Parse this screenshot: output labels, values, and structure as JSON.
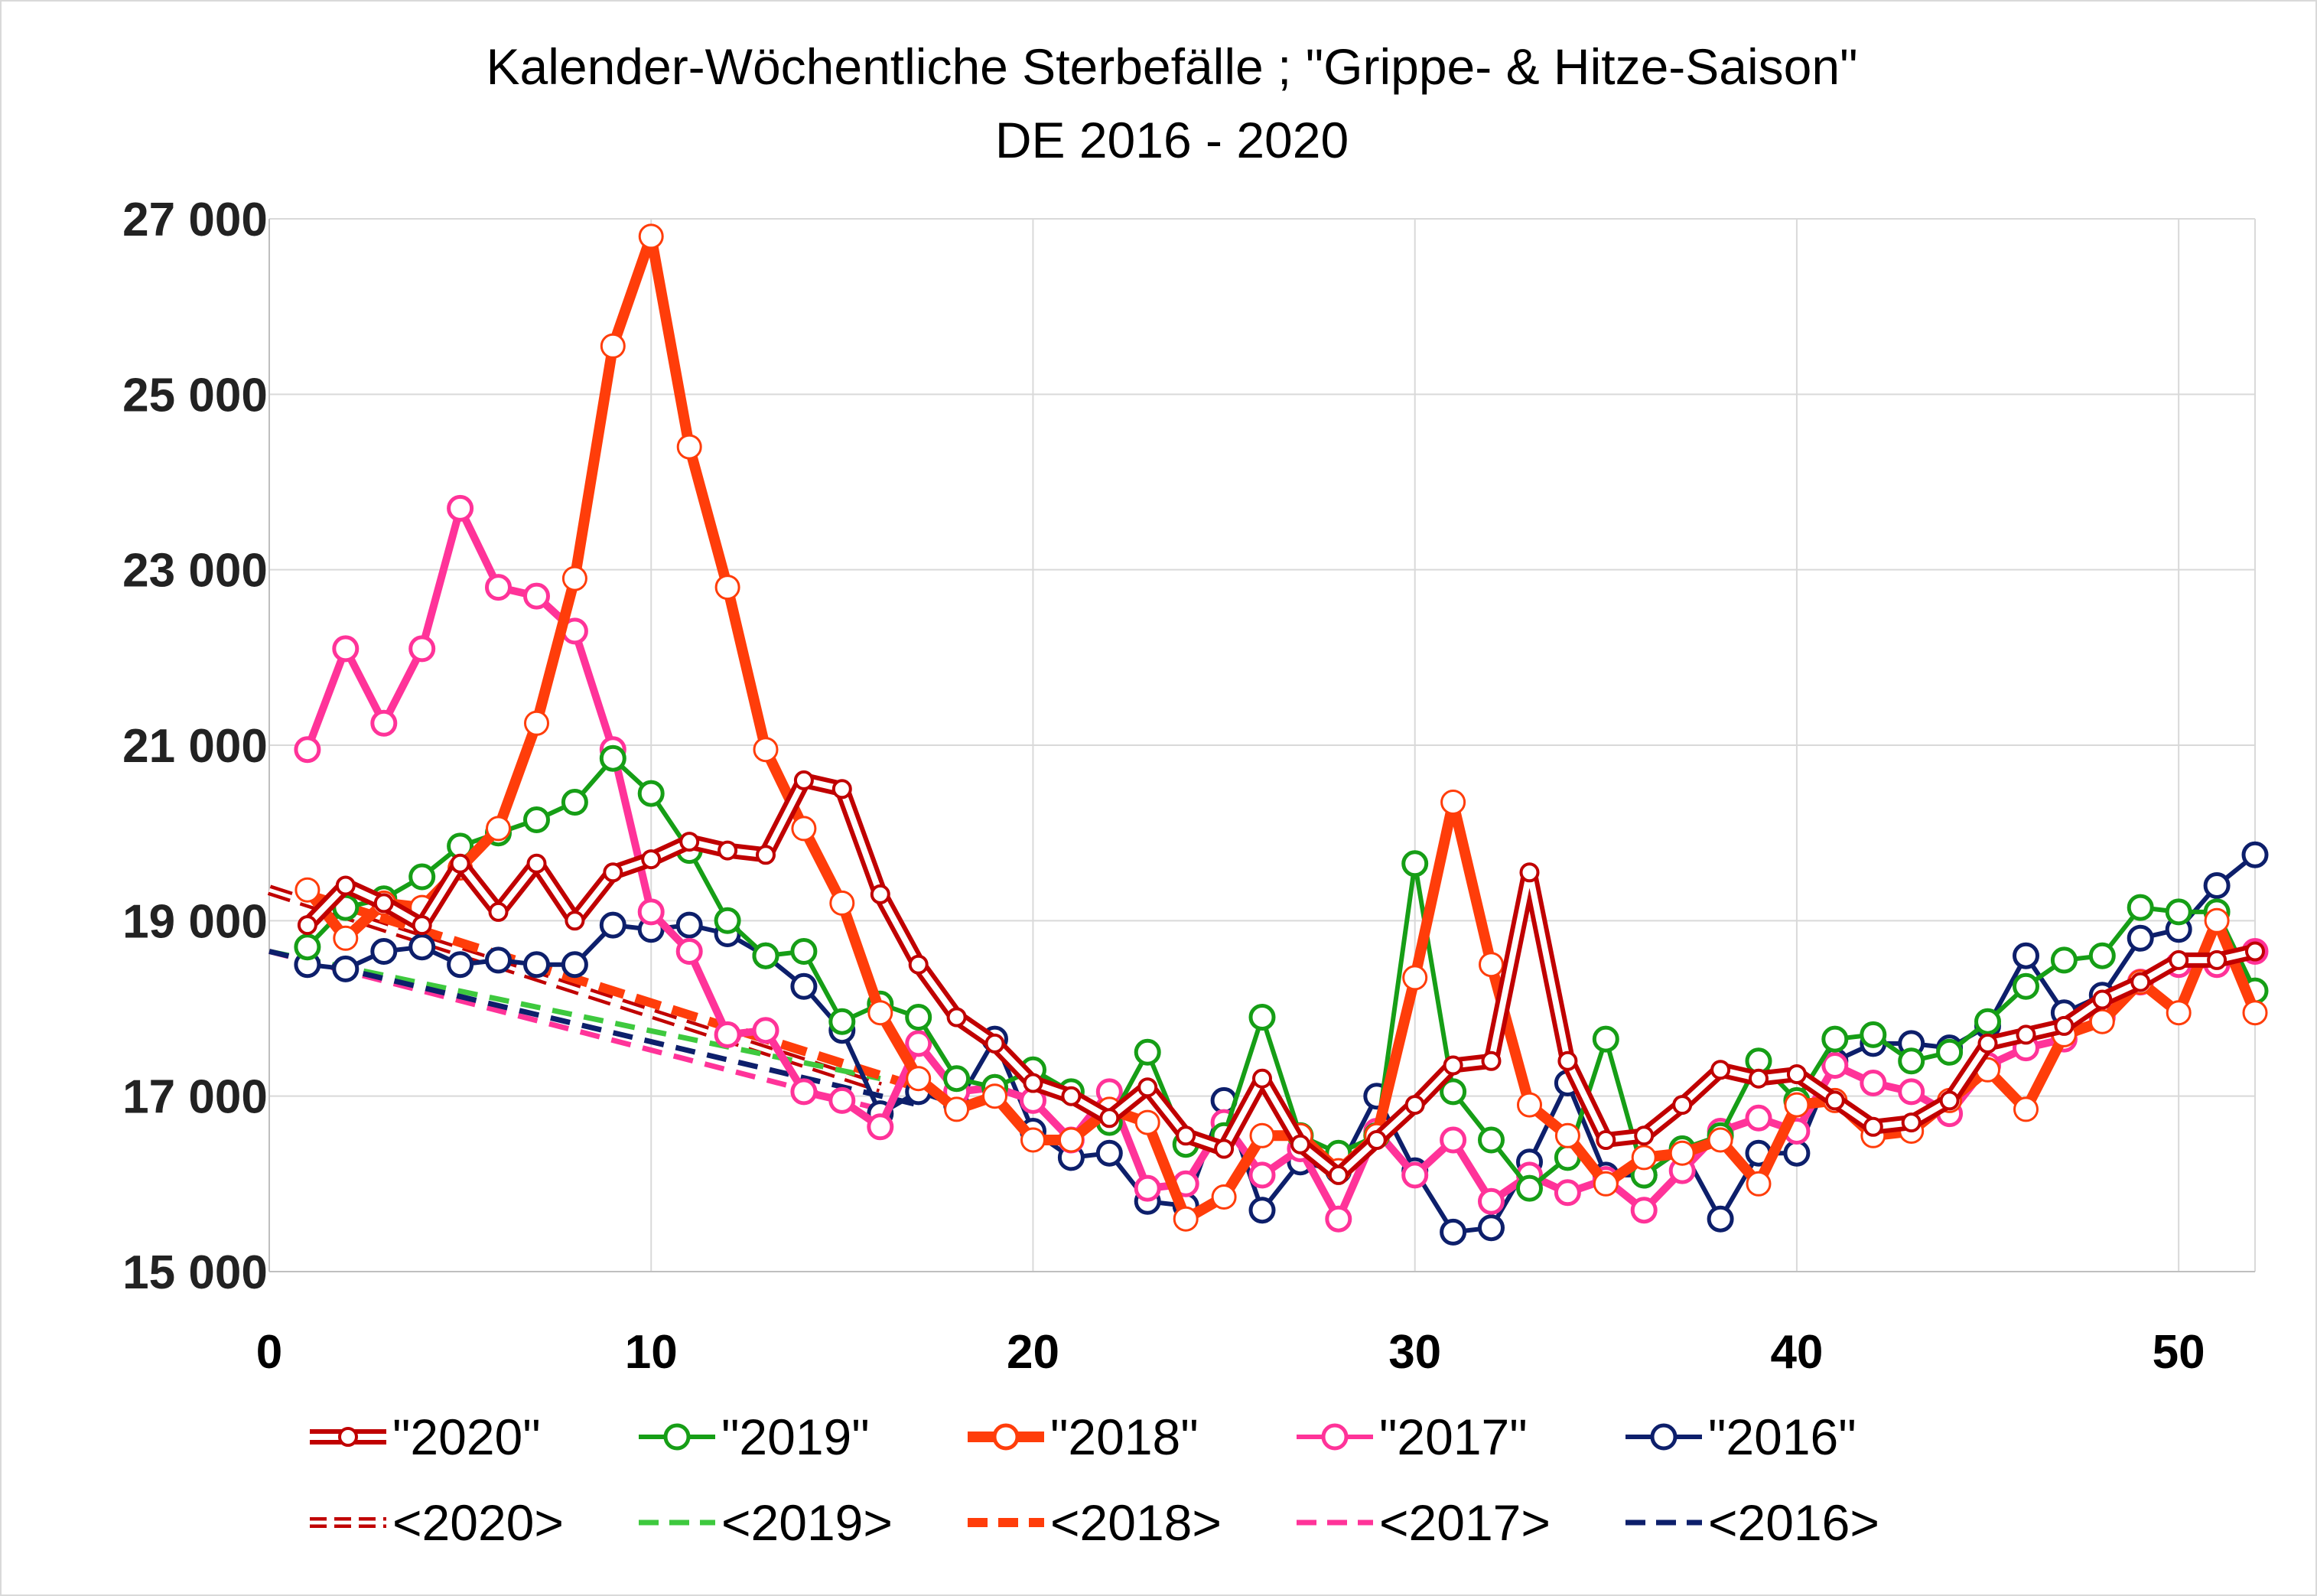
{
  "chart_data": {
    "type": "line",
    "title": "Kalender-Wöchentliche Sterbefälle ; \"Grippe- & Hitze-Saison\"",
    "subtitle": "DE 2016 - 2020",
    "xlim": [
      0,
      52
    ],
    "ylim": [
      15000,
      27000
    ],
    "xticks": [
      0,
      10,
      20,
      30,
      40,
      50
    ],
    "yticks": [
      15000,
      17000,
      19000,
      21000,
      23000,
      25000,
      27000
    ],
    "ytick_labels": [
      "15 000",
      "17 000",
      "19 000",
      "21 000",
      "23 000",
      "25 000",
      "27 000"
    ],
    "grid": true,
    "legend_position": "bottom",
    "series": [
      {
        "name": "\"2020\"",
        "kind": "weekly",
        "color": "#c00000",
        "style": "double",
        "x": [
          1,
          2,
          3,
          4,
          5,
          6,
          7,
          8,
          9,
          10,
          11,
          12,
          13,
          14,
          15,
          16,
          17,
          18,
          19,
          20,
          21,
          22,
          23,
          24,
          25,
          26,
          27,
          28,
          29,
          30,
          31,
          32,
          33,
          34,
          35,
          36,
          37,
          38,
          39,
          40,
          41,
          42,
          43,
          44,
          45,
          46,
          47,
          48,
          49,
          50,
          51,
          52
        ],
        "y": [
          18950,
          19400,
          19200,
          18950,
          19650,
          19100,
          19650,
          19000,
          19550,
          19700,
          19900,
          19800,
          19750,
          20600,
          20500,
          19300,
          18500,
          17900,
          17600,
          17150,
          17000,
          16750,
          17100,
          16550,
          16400,
          17200,
          16450,
          16100,
          16500,
          16900,
          17350,
          17400,
          19550,
          17400,
          16500,
          16550,
          16900,
          17300,
          17200,
          17250,
          16950,
          16650,
          16700,
          16950,
          17600,
          17700,
          17800,
          18100,
          18300,
          18550,
          18550,
          18650
        ]
      },
      {
        "name": "\"2019\"",
        "kind": "weekly",
        "color": "#169e16",
        "style": "solid",
        "x": [
          1,
          2,
          3,
          4,
          5,
          6,
          7,
          8,
          9,
          10,
          11,
          12,
          13,
          14,
          15,
          16,
          17,
          18,
          19,
          20,
          21,
          22,
          23,
          24,
          25,
          26,
          27,
          28,
          29,
          30,
          31,
          32,
          33,
          34,
          35,
          36,
          37,
          38,
          39,
          40,
          41,
          42,
          43,
          44,
          45,
          46,
          47,
          48,
          49,
          50,
          51,
          52
        ],
        "y": [
          18700,
          19150,
          19250,
          19500,
          19850,
          20000,
          20150,
          20350,
          20850,
          20450,
          19800,
          19000,
          18600,
          18650,
          17850,
          18050,
          17900,
          17200,
          17100,
          17300,
          17050,
          16700,
          17500,
          16450,
          16550,
          17900,
          16550,
          16350,
          16550,
          19650,
          17050,
          16500,
          15950,
          16300,
          17650,
          16100,
          16400,
          16550,
          17400,
          16950,
          17650,
          17700,
          17400,
          17500,
          17850,
          18250,
          18550,
          18600,
          19150,
          19100,
          19100,
          18200
        ]
      },
      {
        "name": "\"2018\"",
        "kind": "weekly",
        "color": "#ff3d0a",
        "style": "thick",
        "x": [
          1,
          2,
          3,
          4,
          5,
          6,
          7,
          8,
          9,
          10,
          11,
          12,
          13,
          14,
          15,
          16,
          17,
          18,
          19,
          20,
          21,
          22,
          23,
          24,
          25,
          26,
          27,
          28,
          29,
          30,
          31,
          32,
          33,
          34,
          35,
          36,
          37,
          38,
          39,
          40,
          41,
          42,
          43,
          44,
          45,
          46,
          47,
          48,
          49,
          50,
          51,
          52
        ],
        "y": [
          19350,
          18800,
          19200,
          19150,
          19600,
          20050,
          21250,
          22900,
          25550,
          26800,
          24400,
          22800,
          20950,
          20050,
          19200,
          17950,
          17200,
          16850,
          17000,
          16500,
          16500,
          16850,
          16700,
          15600,
          15850,
          16550,
          16550,
          16150,
          16550,
          18350,
          20350,
          18500,
          16900,
          16550,
          16000,
          16300,
          16350,
          16500,
          16000,
          16900,
          16950,
          16550,
          16600,
          16950,
          17300,
          16850,
          17700,
          17850,
          18300,
          17950,
          19000,
          17950
        ]
      },
      {
        "name": "\"2017\"",
        "kind": "weekly",
        "color": "#ff3399",
        "style": "solid",
        "x": [
          1,
          2,
          3,
          4,
          5,
          6,
          7,
          8,
          9,
          10,
          11,
          12,
          13,
          14,
          15,
          16,
          17,
          18,
          19,
          20,
          21,
          22,
          23,
          24,
          25,
          26,
          27,
          28,
          29,
          30,
          31,
          32,
          33,
          34,
          35,
          36,
          37,
          38,
          39,
          40,
          41,
          42,
          43,
          44,
          45,
          46,
          47,
          48,
          49,
          50,
          51,
          52
        ],
        "y": [
          20950,
          22100,
          21250,
          22100,
          23700,
          22800,
          22700,
          22300,
          20950,
          19100,
          18650,
          17700,
          17750,
          17050,
          16950,
          16650,
          17600,
          17050,
          17100,
          16950,
          16500,
          17050,
          15950,
          16000,
          16700,
          16100,
          16400,
          15600,
          16600,
          16100,
          16500,
          15800,
          16100,
          15900,
          16050,
          15700,
          16150,
          16600,
          16750,
          16600,
          17350,
          17150,
          17050,
          16800,
          17350,
          17550,
          17650,
          17900,
          18300,
          18500,
          18500,
          18650
        ]
      },
      {
        "name": "\"2016\"",
        "kind": "weekly",
        "color": "#0d1f6b",
        "style": "solid",
        "x": [
          1,
          2,
          3,
          4,
          5,
          6,
          7,
          8,
          9,
          10,
          11,
          12,
          13,
          14,
          15,
          16,
          17,
          18,
          19,
          20,
          21,
          22,
          23,
          24,
          25,
          26,
          27,
          28,
          29,
          30,
          31,
          32,
          33,
          34,
          35,
          36,
          37,
          38,
          39,
          40,
          41,
          42,
          43,
          44,
          45,
          46,
          47,
          48,
          49,
          50,
          51,
          52
        ],
        "y": [
          18500,
          18450,
          18650,
          18700,
          18500,
          18550,
          18500,
          18500,
          18950,
          18900,
          18950,
          18850,
          18600,
          18250,
          17750,
          16800,
          17050,
          16900,
          17650,
          16600,
          16300,
          16350,
          15800,
          15750,
          16950,
          15700,
          16250,
          16150,
          17000,
          16150,
          15450,
          15500,
          16250,
          17150,
          16100,
          16100,
          16400,
          15600,
          16350,
          16350,
          17400,
          17600,
          17600,
          17550,
          17800,
          18600,
          17950,
          18150,
          18800,
          18900,
          19400,
          19750
        ]
      },
      {
        "name": "<2020>",
        "kind": "trend",
        "color": "#c00000",
        "style": "double-dashed",
        "x": [
          0,
          16
        ],
        "y": [
          19350,
          17100
        ]
      },
      {
        "name": "<2019>",
        "kind": "trend",
        "color": "#3ec93e",
        "style": "dashed",
        "x": [
          0,
          16
        ],
        "y": [
          18650,
          17200
        ]
      },
      {
        "name": "<2018>",
        "kind": "trend",
        "color": "#ff3d0a",
        "style": "thick-dashed",
        "x": [
          1,
          17
        ],
        "y": [
          19300,
          17100
        ]
      },
      {
        "name": "<2017>",
        "kind": "trend",
        "color": "#ff3399",
        "style": "dashed",
        "x": [
          0,
          16
        ],
        "y": [
          18650,
          16850
        ]
      },
      {
        "name": "<2016>",
        "kind": "trend",
        "color": "#0d1f6b",
        "style": "dashed",
        "x": [
          0,
          17
        ],
        "y": [
          18650,
          16900
        ]
      }
    ]
  }
}
